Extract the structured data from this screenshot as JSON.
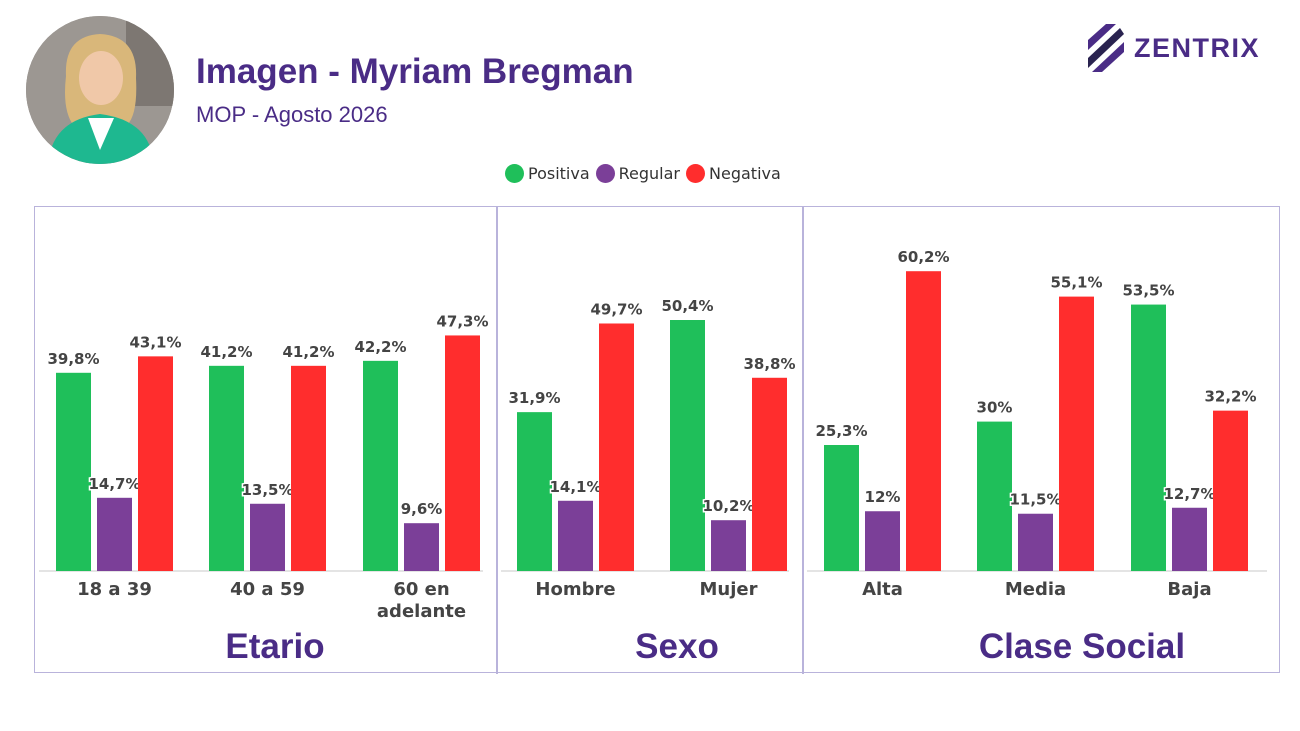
{
  "header": {
    "title": "Imagen - Myriam Bregman",
    "subtitle": "MOP - Agosto 2026"
  },
  "brand": {
    "name": "ZENTRIX"
  },
  "colors": {
    "positiva": "#1fbf5a",
    "regular": "#7b3f98",
    "negativa": "#ff2d2d",
    "accent": "#4a2c86"
  },
  "legend": [
    {
      "label": "Positiva",
      "color": "#1fbf5a"
    },
    {
      "label": "Regular",
      "color": "#7b3f98"
    },
    {
      "label": "Negativa",
      "color": "#ff2d2d"
    }
  ],
  "chart_data": [
    {
      "type": "bar",
      "title": "Etario",
      "categories": [
        "18 a 39",
        "40 a 59",
        "60 en adelante"
      ],
      "series": [
        {
          "name": "Positiva",
          "values": [
            39.8,
            41.2,
            42.2
          ],
          "labels": [
            "39,8%",
            "41,2%",
            "42,2%"
          ]
        },
        {
          "name": "Regular",
          "values": [
            14.7,
            13.5,
            9.6
          ],
          "labels": [
            "14,7%",
            "13,5%",
            "9,6%"
          ]
        },
        {
          "name": "Negativa",
          "values": [
            43.1,
            41.2,
            47.3
          ],
          "labels": [
            "43,1%",
            "41,2%",
            "47,3%"
          ]
        }
      ],
      "ylim": [
        0,
        100
      ],
      "grid": false,
      "legend": "top"
    },
    {
      "type": "bar",
      "title": "Sexo",
      "categories": [
        "Hombre",
        "Mujer"
      ],
      "series": [
        {
          "name": "Positiva",
          "values": [
            31.9,
            50.4
          ],
          "labels": [
            "31,9%",
            "50,4%"
          ]
        },
        {
          "name": "Regular",
          "values": [
            14.1,
            10.2
          ],
          "labels": [
            "14,1%",
            "10,2%"
          ]
        },
        {
          "name": "Negativa",
          "values": [
            49.7,
            38.8
          ],
          "labels": [
            "49,7%",
            "38,8%"
          ]
        }
      ],
      "ylim": [
        0,
        100
      ],
      "grid": false,
      "legend": "top"
    },
    {
      "type": "bar",
      "title": "Clase Social",
      "categories": [
        "Alta",
        "Media",
        "Baja"
      ],
      "series": [
        {
          "name": "Positiva",
          "values": [
            25.3,
            30,
            53.5
          ],
          "labels": [
            "25,3%",
            "30%",
            "53,5%"
          ]
        },
        {
          "name": "Regular",
          "values": [
            12,
            11.5,
            12.7
          ],
          "labels": [
            "12%",
            "11,5%",
            "12,7%"
          ]
        },
        {
          "name": "Negativa",
          "values": [
            60.2,
            55.1,
            32.2
          ],
          "labels": [
            "60,2%",
            "55,1%",
            "32,2%"
          ]
        }
      ],
      "ylim": [
        0,
        100
      ],
      "grid": false,
      "legend": "top"
    }
  ]
}
